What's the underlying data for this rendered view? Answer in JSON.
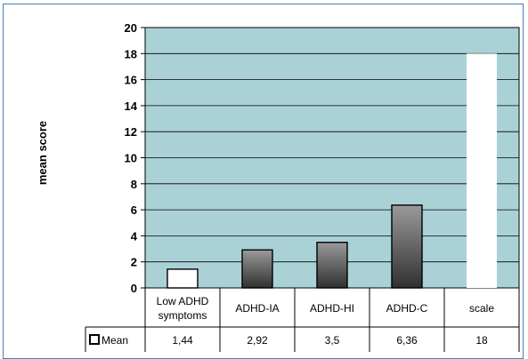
{
  "chart_data": {
    "type": "bar",
    "ylabel": "mean score",
    "ylim": [
      0,
      20
    ],
    "yticks": [
      0,
      2,
      4,
      6,
      8,
      10,
      12,
      14,
      16,
      18,
      20
    ],
    "grid": true,
    "categories": [
      {
        "lines": [
          "Low ADHD",
          "symptoms"
        ]
      },
      {
        "lines": [
          "ADHD-IA"
        ]
      },
      {
        "lines": [
          "ADHD-HI"
        ]
      },
      {
        "lines": [
          "ADHD-C"
        ]
      },
      {
        "lines": [
          "scale"
        ]
      }
    ],
    "series": [
      {
        "name": "Mean",
        "values": [
          1.44,
          2.92,
          3.5,
          6.36,
          18
        ],
        "value_labels": [
          "1,44",
          "2,92",
          "3,5",
          "6,36",
          "18"
        ]
      }
    ],
    "plot_background": "#aad2d6",
    "bar_fills": [
      "white",
      "gradient",
      "gradient",
      "gradient",
      "white-borderless"
    ]
  }
}
